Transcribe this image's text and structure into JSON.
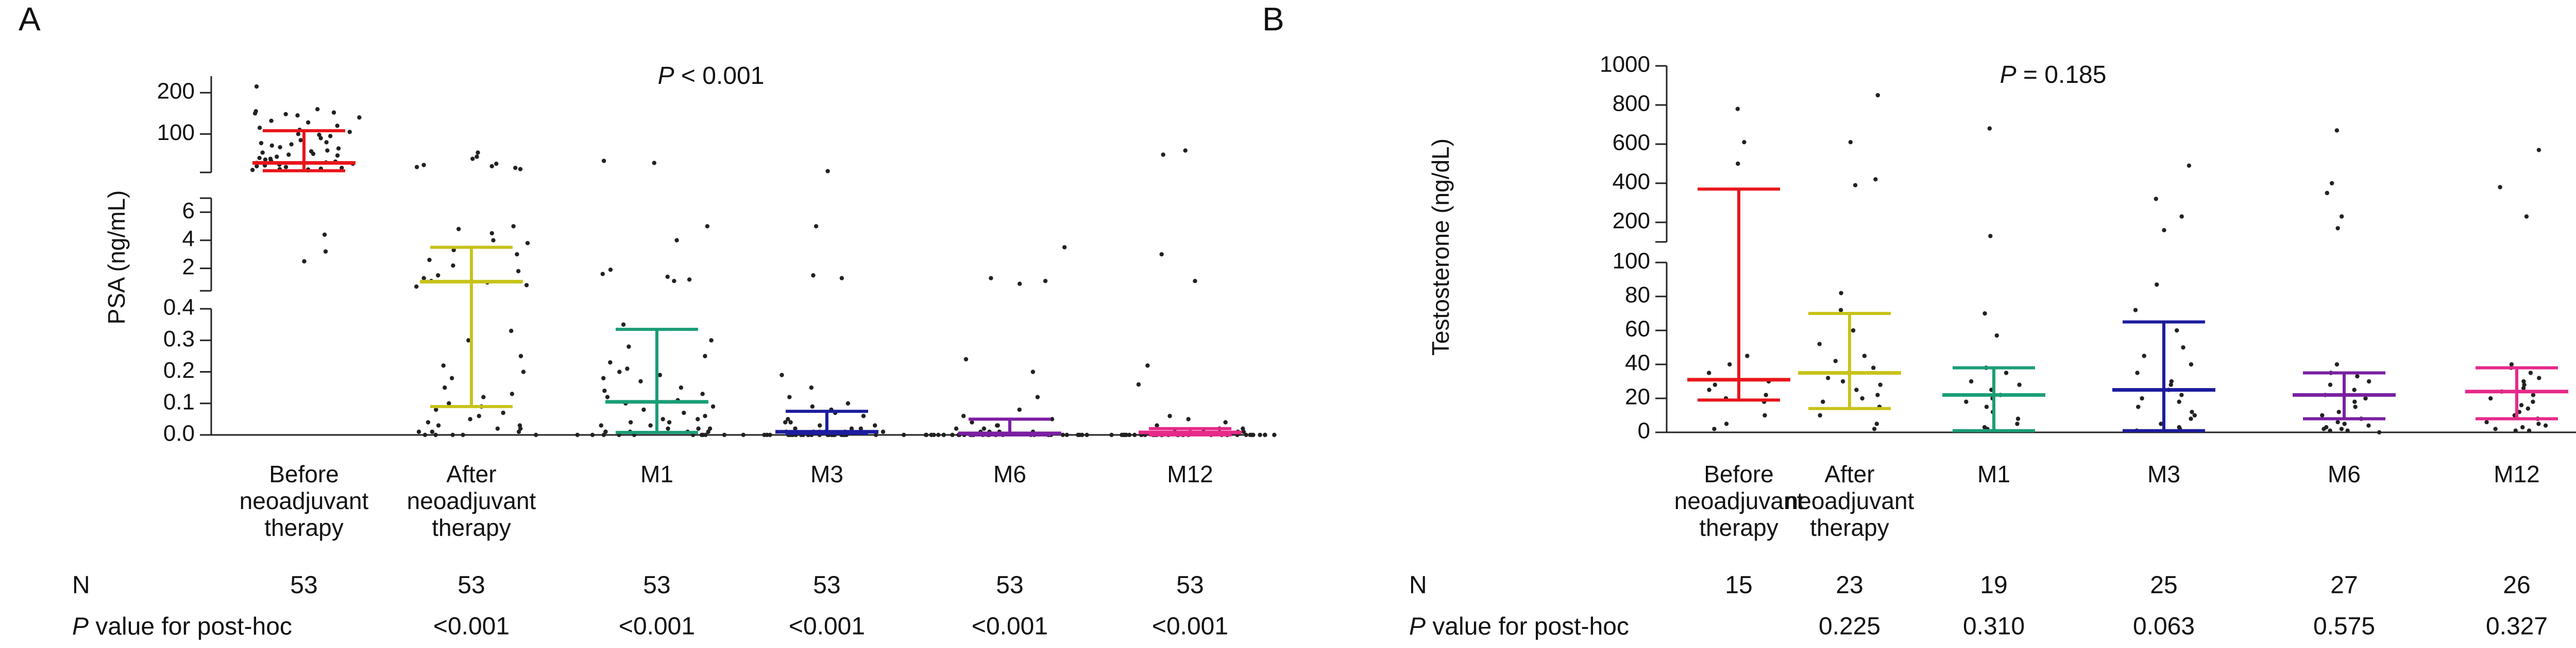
{
  "chart_data": [
    {
      "panel": "A",
      "type": "scatter",
      "title": "",
      "p_label": "P",
      "p_text": " < 0.001",
      "ylabel": "PSA (ng/mL)",
      "categories": [
        "Before neoadjuvant therapy",
        "After neoadjuvant therapy",
        "M1",
        "M3",
        "M6",
        "M12"
      ],
      "category_lines": [
        [
          "Before",
          "neoadjuvant",
          "therapy"
        ],
        [
          "After",
          "neoadjuvant",
          "therapy"
        ],
        [
          "M1"
        ],
        [
          "M3"
        ],
        [
          "M6"
        ],
        [
          "M12"
        ]
      ],
      "y_axis_segments": [
        {
          "range": [
            0,
            0.4
          ],
          "ticks": [
            0.0,
            0.1,
            0.2,
            0.3,
            0.4
          ],
          "tick_labels": [
            "0.0",
            "0.1",
            "0.2",
            "0.3",
            "0.4"
          ]
        },
        {
          "range": [
            0.4,
            7
          ],
          "ticks": [
            2,
            4,
            6
          ],
          "tick_labels": [
            "2",
            "4",
            "6"
          ]
        },
        {
          "range": [
            7,
            240
          ],
          "ticks": [
            100,
            200
          ],
          "tick_labels": [
            "100",
            "200"
          ]
        }
      ],
      "groups": [
        {
          "name": "Before neoadjuvant therapy",
          "color": "#e8161b",
          "median": 30,
          "q1": 11,
          "q3": 108,
          "points": [
            215,
            160,
            155,
            152,
            150,
            148,
            145,
            140,
            132,
            128,
            120,
            115,
            110,
            105,
            100,
            98,
            95,
            90,
            85,
            80,
            78,
            75,
            72,
            68,
            65,
            60,
            58,
            55,
            52,
            50,
            48,
            45,
            42,
            40,
            38,
            35,
            33,
            31,
            30,
            28,
            26,
            24,
            22,
            20,
            18,
            16,
            15,
            14,
            13,
            12,
            4.4,
            3.2,
            2.5
          ]
        },
        {
          "name": "After neoadjuvant therapy",
          "color": "#c8c21a",
          "median": 1.05,
          "q1": 0.09,
          "q3": 3.5,
          "points": [
            55,
            45,
            40,
            28,
            25,
            22,
            20,
            18,
            15,
            5.0,
            4.8,
            4.5,
            4.0,
            3.8,
            3.3,
            3.0,
            2.6,
            2.2,
            1.8,
            1.5,
            1.3,
            1.1,
            1.0,
            0.8,
            0.7,
            0.33,
            0.3,
            0.25,
            0.22,
            0.2,
            0.18,
            0.15,
            0.13,
            0.12,
            0.1,
            0.09,
            0.08,
            0.07,
            0.06,
            0.05,
            0.04,
            0.03,
            0.03,
            0.02,
            0.02,
            0.01,
            0.01,
            0.01,
            0.0,
            0.0,
            0.0,
            0.0,
            0.0
          ]
        },
        {
          "name": "M1",
          "color": "#1a9e77",
          "median": 0.105,
          "q1": 0.008,
          "q3": 0.335,
          "points": [
            35,
            30,
            5.0,
            4.0,
            1.9,
            1.6,
            1.4,
            1.2,
            1.1,
            0.35,
            0.3,
            0.28,
            0.25,
            0.23,
            0.21,
            0.2,
            0.19,
            0.18,
            0.17,
            0.15,
            0.14,
            0.13,
            0.12,
            0.11,
            0.1,
            0.09,
            0.08,
            0.07,
            0.06,
            0.05,
            0.05,
            0.04,
            0.04,
            0.03,
            0.03,
            0.02,
            0.02,
            0.02,
            0.01,
            0.01,
            0.01,
            0.01,
            0.01,
            0.0,
            0.0,
            0.0,
            0.0,
            0.0,
            0.0,
            0.0,
            0.0,
            0.0,
            0.0
          ]
        },
        {
          "name": "M3",
          "color": "#1c1c9e",
          "median": 0.01,
          "q1": 0.005,
          "q3": 0.075,
          "points": [
            10,
            5.0,
            1.5,
            1.3,
            0.19,
            0.15,
            0.12,
            0.1,
            0.09,
            0.08,
            0.07,
            0.06,
            0.05,
            0.04,
            0.04,
            0.03,
            0.03,
            0.02,
            0.02,
            0.02,
            0.01,
            0.01,
            0.01,
            0.01,
            0.01,
            0.01,
            0.0,
            0.0,
            0.0,
            0.0,
            0.0,
            0.0,
            0.0,
            0.0,
            0.0,
            0.0,
            0.0,
            0.0,
            0.0,
            0.0,
            0.0,
            0.0,
            0.0,
            0.0,
            0.0,
            0.0,
            0.0,
            0.0,
            0.0,
            0.0,
            0.0,
            0.0,
            0.0
          ]
        },
        {
          "name": "M6",
          "color": "#7b1fa2",
          "median": 0.005,
          "q1": 0.0,
          "q3": 0.05,
          "points": [
            3.5,
            1.3,
            1.1,
            0.9,
            0.24,
            0.2,
            0.12,
            0.08,
            0.06,
            0.05,
            0.04,
            0.03,
            0.03,
            0.02,
            0.02,
            0.01,
            0.01,
            0.01,
            0.01,
            0.0,
            0.0,
            0.0,
            0.0,
            0.0,
            0.0,
            0.0,
            0.0,
            0.0,
            0.0,
            0.0,
            0.0,
            0.0,
            0.0,
            0.0,
            0.0,
            0.0,
            0.0,
            0.0,
            0.0,
            0.0,
            0.0,
            0.0,
            0.0,
            0.0,
            0.0,
            0.0,
            0.0,
            0.0,
            0.0,
            0.0,
            0.0,
            0.0,
            0.0
          ]
        },
        {
          "name": "M12",
          "color": "#e7298a",
          "median": 0.008,
          "q1": 0.0,
          "q3": 0.02,
          "points": [
            60,
            50,
            3.0,
            1.1,
            0.22,
            0.16,
            0.06,
            0.05,
            0.04,
            0.03,
            0.02,
            0.02,
            0.01,
            0.01,
            0.01,
            0.01,
            0.0,
            0.0,
            0.0,
            0.0,
            0.0,
            0.0,
            0.0,
            0.0,
            0.0,
            0.0,
            0.0,
            0.0,
            0.0,
            0.0,
            0.0,
            0.0,
            0.0,
            0.0,
            0.0,
            0.0,
            0.0,
            0.0,
            0.0,
            0.0,
            0.0,
            0.0,
            0.0,
            0.0,
            0.0,
            0.0,
            0.0,
            0.0,
            0.0,
            0.0,
            0.0,
            0.0,
            0.0
          ]
        }
      ],
      "table": {
        "n_label": "N",
        "n_values": [
          "53",
          "53",
          "53",
          "53",
          "53",
          "53"
        ],
        "p_row_label_italic": "P",
        "p_row_label_rest": " value for post-hoc",
        "p_values": [
          "",
          "<0.001",
          "<0.001",
          "<0.001",
          "<0.001",
          "<0.001"
        ]
      }
    },
    {
      "panel": "B",
      "type": "scatter",
      "title": "",
      "p_label": "P",
      "p_text": " = 0.185",
      "ylabel": "Testosterone (ng/dL)",
      "categories": [
        "Before neoadjuvant therapy",
        "After neoadjuvant therapy",
        "M1",
        "M3",
        "M6",
        "M12"
      ],
      "category_lines": [
        [
          "Before",
          "neoadjuvant",
          "therapy"
        ],
        [
          "After",
          "neoadjuvant",
          "therapy"
        ],
        [
          "M1"
        ],
        [
          "M3"
        ],
        [
          "M6"
        ],
        [
          "M12"
        ]
      ],
      "y_axis_segments": [
        {
          "range": [
            0,
            100
          ],
          "ticks": [
            0,
            20,
            40,
            60,
            80,
            100
          ],
          "tick_labels": [
            "0",
            "20",
            "40",
            "60",
            "80",
            "100"
          ]
        },
        {
          "range": [
            100,
            1000
          ],
          "ticks": [
            200,
            400,
            600,
            800,
            1000
          ],
          "tick_labels": [
            "200",
            "400",
            "600",
            "800",
            "1000"
          ]
        }
      ],
      "groups": [
        {
          "name": "Before neoadjuvant therapy",
          "color": "#e8161b",
          "median": 31,
          "q1": 19,
          "q3": 370,
          "points": [
            780,
            610,
            500,
            45,
            40,
            35,
            30,
            28,
            25,
            22,
            20,
            18,
            10,
            5,
            2
          ]
        },
        {
          "name": "After neoadjuvant therapy",
          "color": "#c8c21a",
          "median": 35,
          "q1": 14,
          "q3": 70,
          "points": [
            850,
            610,
            420,
            390,
            82,
            72,
            60,
            52,
            45,
            42,
            38,
            35,
            32,
            30,
            28,
            25,
            22,
            20,
            18,
            15,
            10,
            5,
            2
          ]
        },
        {
          "name": "M1",
          "color": "#1a9e77",
          "median": 22,
          "q1": 1,
          "q3": 38,
          "points": [
            680,
            130,
            70,
            57,
            38,
            35,
            30,
            28,
            25,
            22,
            20,
            18,
            15,
            12,
            8,
            5,
            3,
            2,
            1
          ]
        },
        {
          "name": "M3",
          "color": "#1c1c9e",
          "median": 25,
          "q1": 1,
          "q3": 65,
          "points": [
            490,
            320,
            230,
            160,
            87,
            72,
            60,
            50,
            45,
            40,
            35,
            30,
            28,
            25,
            22,
            20,
            18,
            15,
            12,
            10,
            8,
            5,
            3,
            2,
            1
          ]
        },
        {
          "name": "M6",
          "color": "#7b1fa2",
          "median": 22,
          "q1": 8,
          "q3": 35,
          "points": [
            670,
            400,
            350,
            230,
            170,
            40,
            35,
            33,
            30,
            28,
            25,
            22,
            20,
            18,
            15,
            12,
            10,
            8,
            6,
            5,
            4,
            3,
            2,
            2,
            1,
            1,
            0
          ]
        },
        {
          "name": "M12",
          "color": "#e7298a",
          "median": 24,
          "q1": 8,
          "q3": 38,
          "points": [
            570,
            380,
            230,
            40,
            38,
            35,
            32,
            30,
            28,
            26,
            24,
            22,
            20,
            18,
            16,
            14,
            12,
            10,
            8,
            6,
            5,
            4,
            3,
            2,
            1,
            1
          ]
        }
      ],
      "table": {
        "n_label": "N",
        "n_values": [
          "15",
          "23",
          "19",
          "25",
          "27",
          "26"
        ],
        "p_row_label_italic": "P",
        "p_row_label_rest": " value for post-hoc",
        "p_values": [
          "",
          "0.225",
          "0.310",
          "0.063",
          "0.575",
          "0.327"
        ]
      }
    }
  ]
}
